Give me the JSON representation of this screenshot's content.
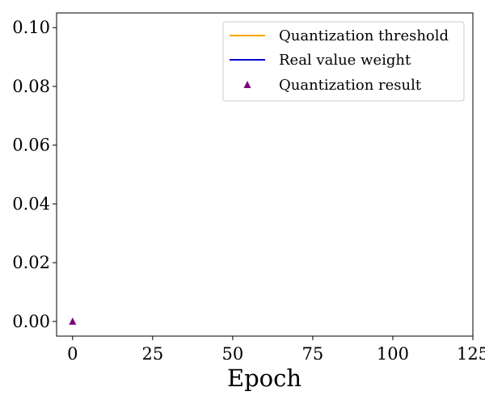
{
  "chart_data": {
    "type": "line",
    "xlabel": "Epoch",
    "ylabel": "",
    "xlim": [
      -5,
      125
    ],
    "ylim": [
      -0.005,
      0.105
    ],
    "xticks": [
      0,
      25,
      50,
      75,
      100,
      125
    ],
    "xtick_labels": [
      "0",
      "25",
      "50",
      "75",
      "100",
      "125"
    ],
    "yticks": [
      0.0,
      0.02,
      0.04,
      0.06,
      0.08,
      0.1
    ],
    "ytick_labels": [
      "0.00",
      "0.02",
      "0.04",
      "0.06",
      "0.08",
      "0.10"
    ],
    "grid": false,
    "legend_position": "top-right",
    "series": [
      {
        "name": "Quantization threshold",
        "type": "line",
        "color": "#ffa500",
        "x": [],
        "y": []
      },
      {
        "name": "Real value weight",
        "type": "line",
        "color": "#0000cd",
        "x": [],
        "y": []
      },
      {
        "name": "Quantization result",
        "type": "scatter",
        "marker": "triangle-up",
        "color": "#800080",
        "x": [
          0
        ],
        "y": [
          0.0
        ]
      }
    ]
  }
}
